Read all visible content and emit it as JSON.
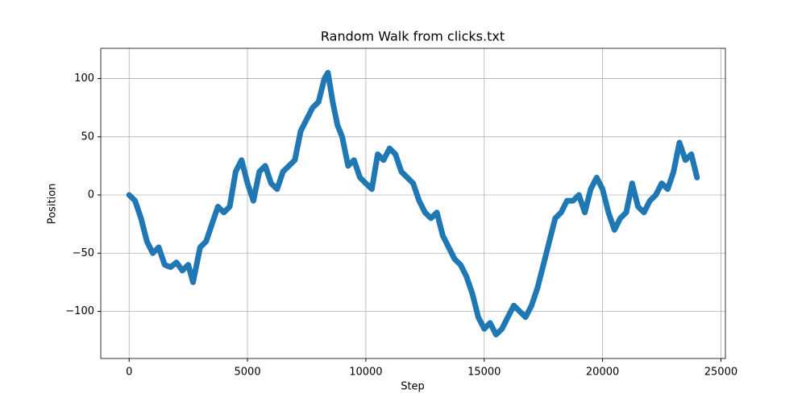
{
  "chart_data": {
    "type": "line",
    "title": "Random Walk from clicks.txt",
    "x_label": "Step",
    "y_label": "Position",
    "x": [
      0,
      250,
      500,
      750,
      1000,
      1250,
      1500,
      1750,
      2000,
      2250,
      2500,
      2700,
      3000,
      3250,
      3500,
      3750,
      4000,
      4250,
      4500,
      4750,
      5000,
      5250,
      5500,
      5750,
      6000,
      6250,
      6500,
      6750,
      7000,
      7250,
      7500,
      7750,
      8000,
      8250,
      8400,
      8600,
      8800,
      9000,
      9250,
      9500,
      9750,
      10000,
      10250,
      10500,
      10750,
      11000,
      11250,
      11500,
      11750,
      12000,
      12250,
      12500,
      12750,
      13000,
      13250,
      13500,
      13750,
      14000,
      14250,
      14500,
      14750,
      15000,
      15250,
      15500,
      15750,
      16000,
      16250,
      16500,
      16750,
      17000,
      17250,
      17500,
      17750,
      18000,
      18250,
      18500,
      18750,
      19000,
      19250,
      19500,
      19750,
      20000,
      20250,
      20500,
      20750,
      21000,
      21250,
      21500,
      21750,
      22000,
      22250,
      22500,
      22750,
      23000,
      23250,
      23500,
      23750,
      23990
    ],
    "series": [
      {
        "color": "#1f77b4",
        "values": [
          0,
          -5,
          -20,
          -40,
          -50,
          -45,
          -60,
          -62,
          -58,
          -65,
          -60,
          -75,
          -45,
          -40,
          -25,
          -10,
          -15,
          -10,
          20,
          30,
          10,
          -5,
          20,
          25,
          10,
          5,
          20,
          25,
          30,
          55,
          65,
          75,
          80,
          100,
          105,
          80,
          60,
          50,
          25,
          30,
          15,
          10,
          5,
          35,
          30,
          40,
          35,
          20,
          15,
          10,
          -5,
          -15,
          -20,
          -15,
          -35,
          -45,
          -55,
          -60,
          -70,
          -85,
          -105,
          -115,
          -110,
          -120,
          -115,
          -105,
          -95,
          -100,
          -105,
          -95,
          -80,
          -60,
          -40,
          -20,
          -15,
          -5,
          -5,
          0,
          -15,
          5,
          15,
          5,
          -15,
          -30,
          -20,
          -15,
          10,
          -10,
          -15,
          -5,
          0,
          10,
          5,
          20,
          45,
          30,
          35,
          15
        ]
      }
    ],
    "xlim": [
      -1199.5,
      25189.5
    ],
    "ylim": [
      -140.5,
      126
    ],
    "xticks": [
      0,
      5000,
      10000,
      15000,
      20000,
      25000
    ],
    "yticks": [
      {
        "value": -100,
        "label": "−100"
      },
      {
        "value": -50,
        "label": "−50"
      },
      0,
      50,
      100
    ],
    "grid": true
  }
}
